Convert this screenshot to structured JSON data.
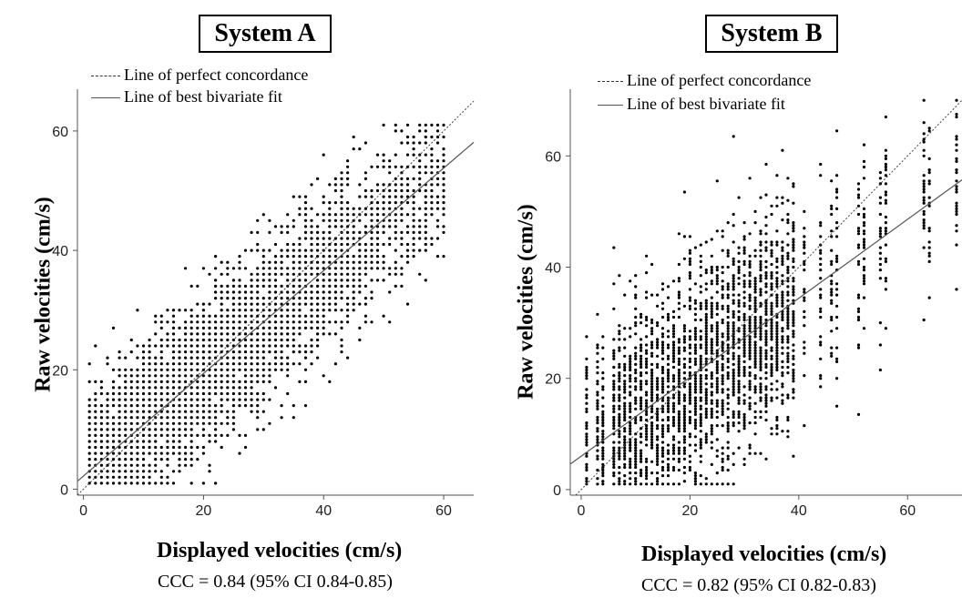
{
  "chart_data": [
    {
      "type": "scatter",
      "title": "System A",
      "legend": [
        "Line of perfect concordance",
        "Line of best bivariate fit"
      ],
      "xlabel": "Displayed velocities (cm/s)",
      "ylabel": "Raw velocities (cm/s)",
      "xlim": [
        -1,
        65
      ],
      "ylim": [
        -1,
        67
      ],
      "xticks": [
        0,
        20,
        40,
        60
      ],
      "yticks": [
        0,
        20,
        40,
        60
      ],
      "concordance_line": {
        "slope": 1,
        "intercept": 0
      },
      "fit_line": {
        "slope": 0.86,
        "intercept": 2.2
      },
      "annotation": "CCC = 0.84 (95% CI 0.84-0.85)",
      "points_description": "dense cloud along fit line, displayed 1-60, raw 1-61",
      "x_distribution": {
        "min": 1,
        "max": 60,
        "step": 1
      },
      "y_spread_sd": 6.5
    },
    {
      "type": "scatter",
      "title": "System B",
      "legend": [
        "Line of perfect concordance",
        "Line of best bivariate fit"
      ],
      "xlabel": "Displayed velocities (cm/s)",
      "ylabel": "Raw velocities (cm/s)",
      "xlim": [
        -2,
        70
      ],
      "ylim": [
        -1,
        72
      ],
      "xticks": [
        0,
        20,
        40,
        60
      ],
      "yticks": [
        0,
        20,
        40,
        60
      ],
      "concordance_line": {
        "slope": 1,
        "intercept": 0
      },
      "fit_line": {
        "slope": 0.71,
        "intercept": 6
      },
      "annotation": "CCC = 0.82 (95% CI 0.82-0.83)",
      "x_columns": [
        1,
        3,
        4,
        6,
        7,
        8,
        9,
        10,
        11,
        12,
        13,
        14,
        15,
        16,
        17,
        18,
        19,
        20,
        21,
        22,
        23,
        24,
        25,
        26,
        27,
        28,
        29,
        30,
        31,
        32,
        33,
        34,
        35,
        36,
        37,
        38,
        39,
        41,
        44,
        46,
        47,
        51,
        52,
        55,
        56,
        63,
        64,
        69
      ],
      "y_spread_sd": 10
    }
  ]
}
